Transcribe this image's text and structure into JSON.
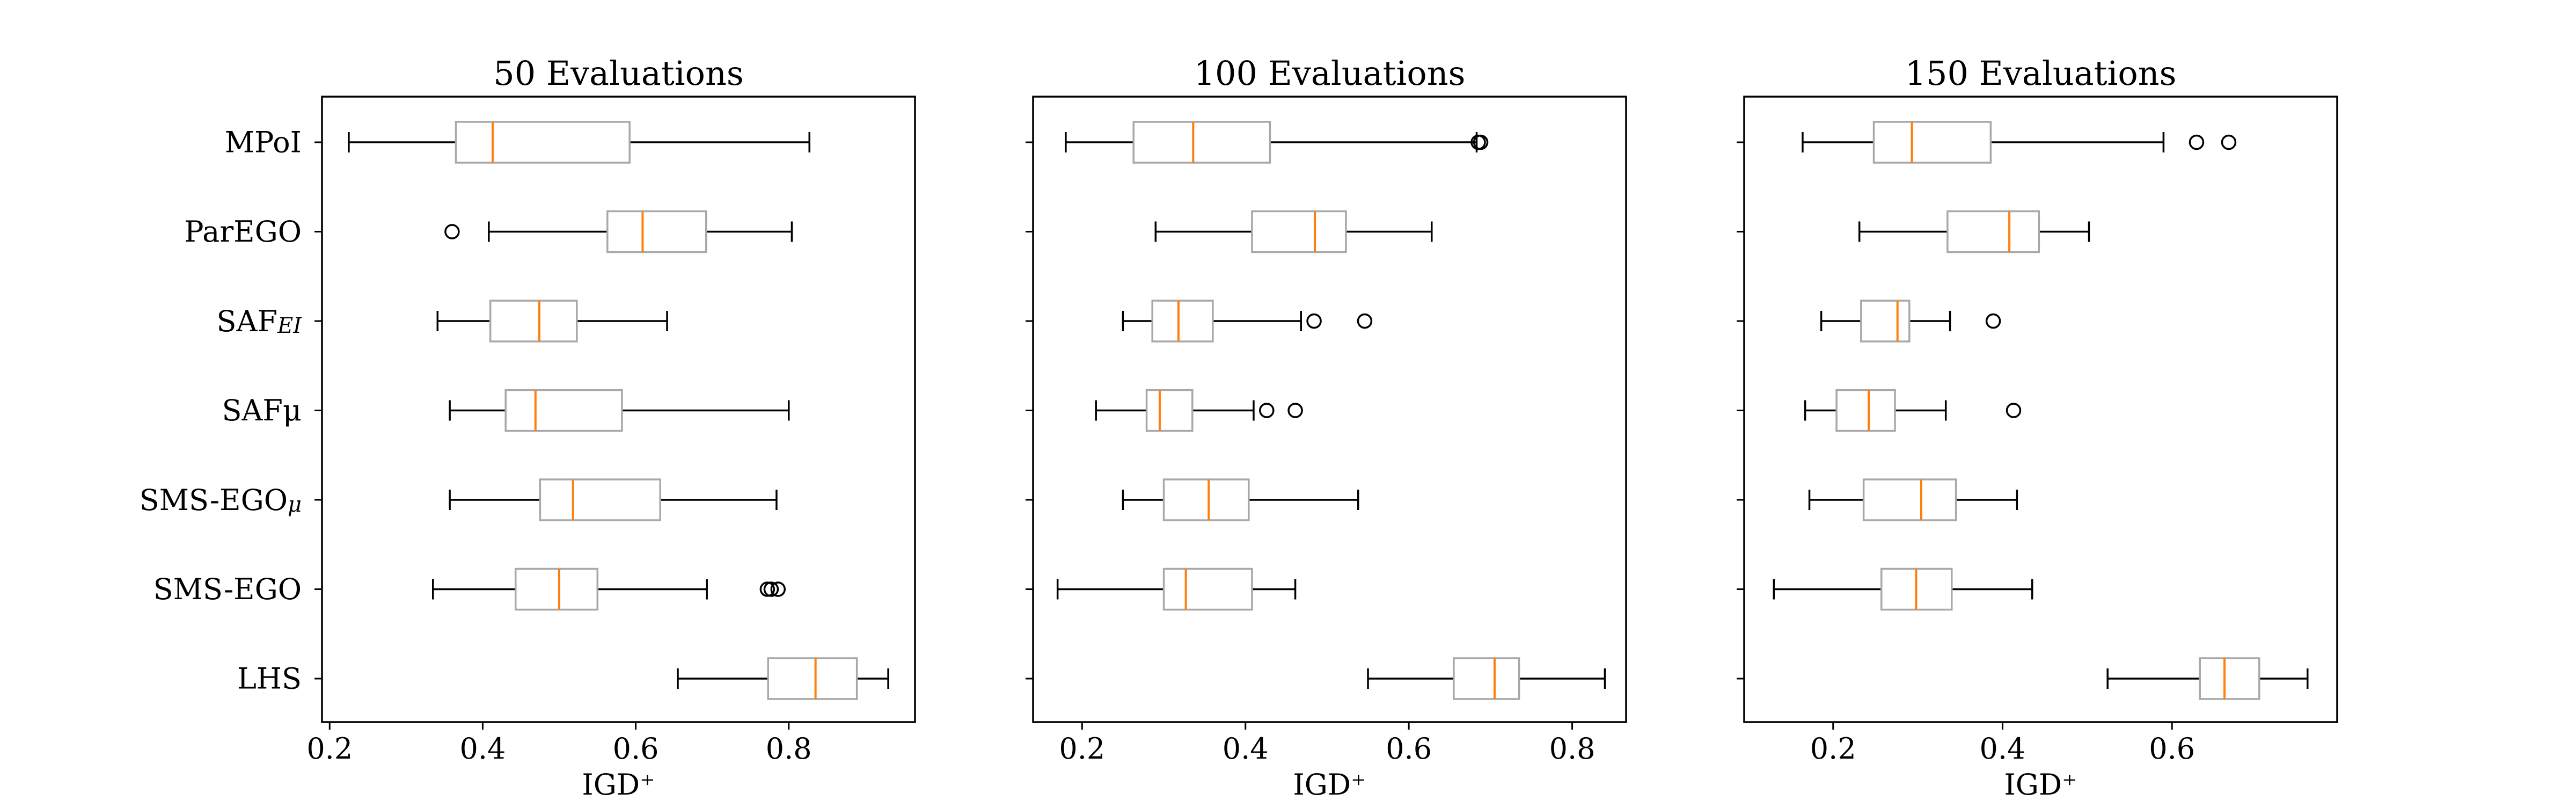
{
  "figure": {
    "background": "#ffffff",
    "box_color": "#a8a8a8",
    "median_color": "#ff7f0e",
    "whisker_color": "#000000"
  },
  "chart_data": [
    {
      "type": "boxplot",
      "title": "50 Evaluations",
      "xlabel": "IGD⁺",
      "xlim": [
        0.19,
        0.965
      ],
      "xticks": [
        0.2,
        0.4,
        0.6,
        0.8
      ],
      "xtick_labels": [
        "0.2",
        "0.4",
        "0.6",
        "0.8"
      ],
      "categories": [
        "MPoI",
        "ParEGO",
        "SAF_EI",
        "SAFμ",
        "SMS-EGO_μ",
        "SMS-EGO",
        "LHS"
      ],
      "boxes": [
        {
          "whislo": 0.225,
          "q1": 0.365,
          "med": 0.413,
          "q3": 0.592,
          "whishi": 0.827,
          "fliers": []
        },
        {
          "whislo": 0.408,
          "q1": 0.563,
          "med": 0.609,
          "q3": 0.692,
          "whishi": 0.804,
          "fliers": [
            0.36
          ]
        },
        {
          "whislo": 0.341,
          "q1": 0.41,
          "med": 0.474,
          "q3": 0.523,
          "whishi": 0.641,
          "fliers": []
        },
        {
          "whislo": 0.357,
          "q1": 0.43,
          "med": 0.469,
          "q3": 0.582,
          "whishi": 0.8,
          "fliers": []
        },
        {
          "whislo": 0.357,
          "q1": 0.475,
          "med": 0.518,
          "q3": 0.632,
          "whishi": 0.784,
          "fliers": []
        },
        {
          "whislo": 0.335,
          "q1": 0.443,
          "med": 0.5,
          "q3": 0.55,
          "whishi": 0.693,
          "fliers": [
            0.772,
            0.777,
            0.786
          ]
        },
        {
          "whislo": 0.655,
          "q1": 0.773,
          "med": 0.835,
          "q3": 0.889,
          "whishi": 0.93,
          "fliers": []
        }
      ]
    },
    {
      "type": "boxplot",
      "title": "100 Evaluations",
      "xlabel": "IGD⁺",
      "xlim": [
        0.14,
        0.866
      ],
      "xticks": [
        0.2,
        0.4,
        0.6,
        0.8
      ],
      "xtick_labels": [
        "0.2",
        "0.4",
        "0.6",
        "0.8"
      ],
      "categories": [
        "MPoI",
        "ParEGO",
        "SAF_EI",
        "SAFμ",
        "SMS-EGO_μ",
        "SMS-EGO",
        "LHS"
      ],
      "boxes": [
        {
          "whislo": 0.18,
          "q1": 0.263,
          "med": 0.336,
          "q3": 0.43,
          "whishi": 0.683,
          "fliers": [
            0.685,
            0.688
          ]
        },
        {
          "whislo": 0.29,
          "q1": 0.408,
          "med": 0.485,
          "q3": 0.523,
          "whishi": 0.628,
          "fliers": []
        },
        {
          "whislo": 0.25,
          "q1": 0.286,
          "med": 0.318,
          "q3": 0.36,
          "whishi": 0.468,
          "fliers": [
            0.484,
            0.546
          ]
        },
        {
          "whislo": 0.217,
          "q1": 0.279,
          "med": 0.295,
          "q3": 0.335,
          "whishi": 0.41,
          "fliers": [
            0.426,
            0.461
          ]
        },
        {
          "whislo": 0.25,
          "q1": 0.3,
          "med": 0.355,
          "q3": 0.404,
          "whishi": 0.538,
          "fliers": []
        },
        {
          "whislo": 0.17,
          "q1": 0.3,
          "med": 0.327,
          "q3": 0.408,
          "whishi": 0.461,
          "fliers": []
        },
        {
          "whislo": 0.55,
          "q1": 0.655,
          "med": 0.705,
          "q3": 0.735,
          "whishi": 0.84,
          "fliers": []
        }
      ]
    },
    {
      "type": "boxplot",
      "title": "150 Evaluations",
      "xlabel": "IGD⁺",
      "xlim": [
        0.095,
        0.795
      ],
      "xticks": [
        0.2,
        0.4,
        0.6
      ],
      "xtick_labels": [
        "0.2",
        "0.4",
        "0.6"
      ],
      "categories": [
        "MPoI",
        "ParEGO",
        "SAF_EI",
        "SAFμ",
        "SMS-EGO_μ",
        "SMS-EGO",
        "LHS"
      ],
      "boxes": [
        {
          "whislo": 0.164,
          "q1": 0.248,
          "med": 0.293,
          "q3": 0.386,
          "whishi": 0.59,
          "fliers": [
            0.629,
            0.667
          ]
        },
        {
          "whislo": 0.231,
          "q1": 0.335,
          "med": 0.408,
          "q3": 0.443,
          "whishi": 0.502,
          "fliers": []
        },
        {
          "whislo": 0.186,
          "q1": 0.233,
          "med": 0.276,
          "q3": 0.29,
          "whishi": 0.338,
          "fliers": [
            0.389
          ]
        },
        {
          "whislo": 0.167,
          "q1": 0.204,
          "med": 0.242,
          "q3": 0.273,
          "whishi": 0.333,
          "fliers": [
            0.413
          ]
        },
        {
          "whislo": 0.172,
          "q1": 0.236,
          "med": 0.304,
          "q3": 0.345,
          "whishi": 0.417,
          "fliers": []
        },
        {
          "whislo": 0.13,
          "q1": 0.257,
          "med": 0.298,
          "q3": 0.34,
          "whishi": 0.435,
          "fliers": []
        },
        {
          "whislo": 0.524,
          "q1": 0.633,
          "med": 0.662,
          "q3": 0.703,
          "whishi": 0.76,
          "fliers": []
        }
      ]
    }
  ]
}
